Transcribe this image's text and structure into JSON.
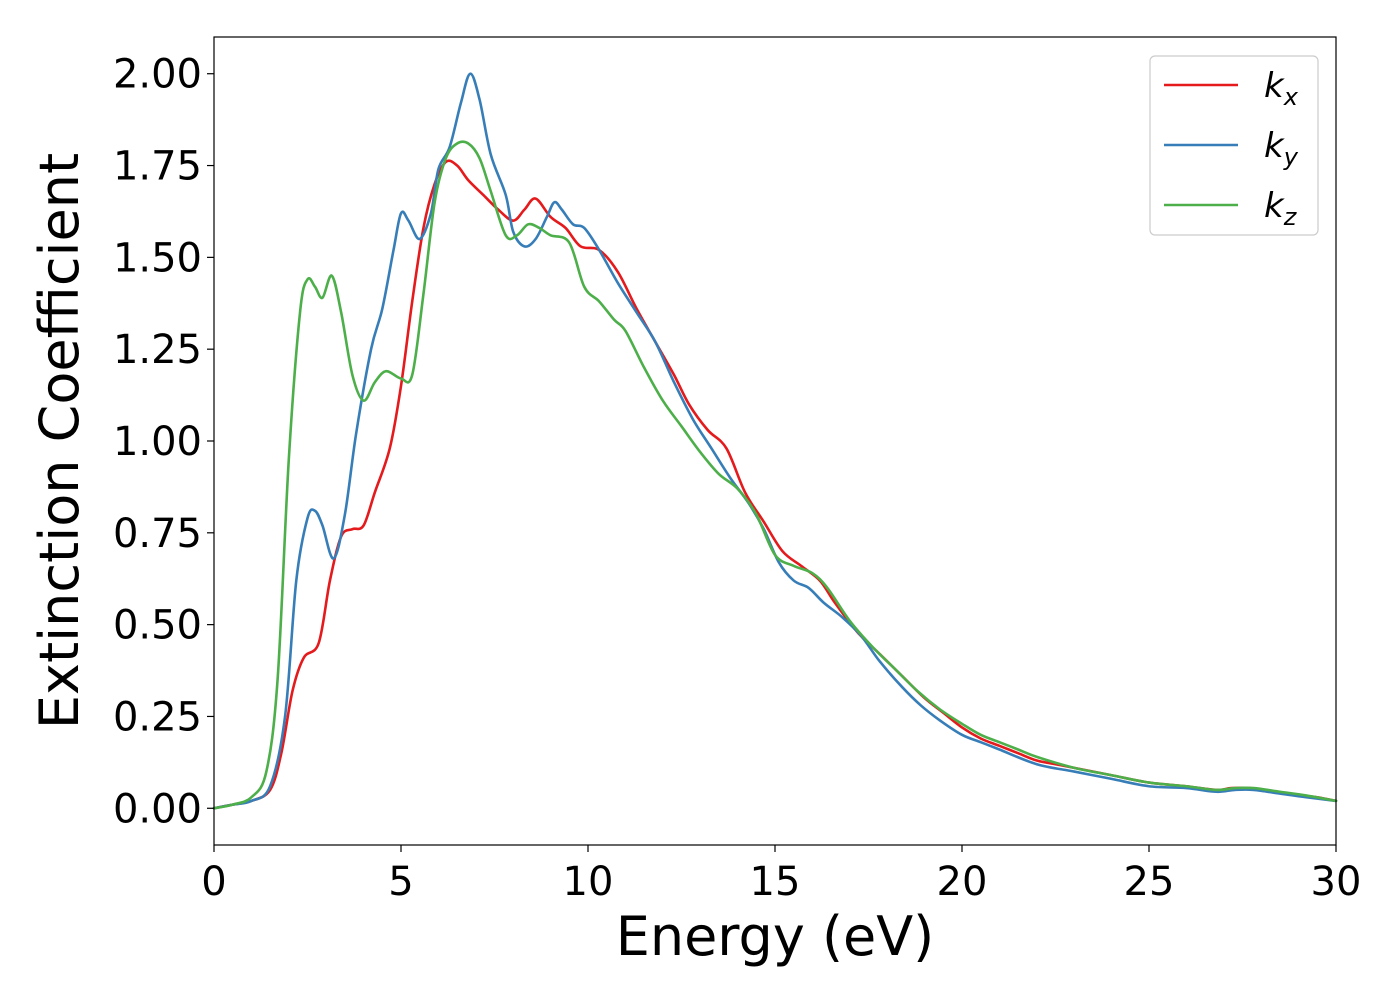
{
  "chart_data": {
    "type": "line",
    "xlabel": "Energy (eV)",
    "ylabel": "Extinction Coefficient",
    "xlim": [
      0,
      30
    ],
    "ylim": [
      -0.1,
      2.1
    ],
    "xticks": [
      "0",
      "5",
      "10",
      "15",
      "20",
      "25",
      "30"
    ],
    "yticks": [
      "0.00",
      "0.25",
      "0.50",
      "0.75",
      "1.00",
      "1.25",
      "1.50",
      "1.75",
      "2.00"
    ],
    "grid": false,
    "legend_position": "top-right",
    "series": [
      {
        "name": "k",
        "subscript": "x",
        "color": "#e41a1c",
        "points": [
          [
            0,
            0
          ],
          [
            0.5,
            0.01
          ],
          [
            1,
            0.02
          ],
          [
            1.5,
            0.05
          ],
          [
            1.8,
            0.15
          ],
          [
            2.1,
            0.32
          ],
          [
            2.4,
            0.41
          ],
          [
            2.8,
            0.45
          ],
          [
            3.1,
            0.62
          ],
          [
            3.4,
            0.74
          ],
          [
            3.7,
            0.76
          ],
          [
            4.0,
            0.77
          ],
          [
            4.3,
            0.86
          ],
          [
            4.7,
            0.98
          ],
          [
            5.0,
            1.15
          ],
          [
            5.3,
            1.38
          ],
          [
            5.6,
            1.58
          ],
          [
            5.9,
            1.7
          ],
          [
            6.2,
            1.76
          ],
          [
            6.5,
            1.75
          ],
          [
            6.8,
            1.71
          ],
          [
            7.2,
            1.67
          ],
          [
            7.6,
            1.63
          ],
          [
            8.0,
            1.6
          ],
          [
            8.3,
            1.63
          ],
          [
            8.6,
            1.66
          ],
          [
            9.0,
            1.61
          ],
          [
            9.4,
            1.58
          ],
          [
            9.8,
            1.53
          ],
          [
            10.3,
            1.52
          ],
          [
            10.8,
            1.46
          ],
          [
            11.3,
            1.36
          ],
          [
            11.8,
            1.27
          ],
          [
            12.3,
            1.18
          ],
          [
            12.7,
            1.1
          ],
          [
            13.2,
            1.03
          ],
          [
            13.7,
            0.98
          ],
          [
            14.2,
            0.86
          ],
          [
            14.7,
            0.78
          ],
          [
            15.2,
            0.7
          ],
          [
            15.7,
            0.66
          ],
          [
            16.2,
            0.62
          ],
          [
            16.6,
            0.56
          ],
          [
            17.2,
            0.48
          ],
          [
            17.8,
            0.42
          ],
          [
            18.4,
            0.36
          ],
          [
            19.0,
            0.3
          ],
          [
            19.5,
            0.26
          ],
          [
            20.0,
            0.22
          ],
          [
            20.5,
            0.19
          ],
          [
            21.0,
            0.17
          ],
          [
            21.5,
            0.15
          ],
          [
            22.0,
            0.13
          ],
          [
            22.5,
            0.12
          ],
          [
            23.0,
            0.11
          ],
          [
            24.0,
            0.09
          ],
          [
            25.0,
            0.07
          ],
          [
            26.0,
            0.06
          ],
          [
            26.8,
            0.05
          ],
          [
            27.2,
            0.055
          ],
          [
            27.7,
            0.055
          ],
          [
            28.3,
            0.045
          ],
          [
            29.0,
            0.035
          ],
          [
            29.5,
            0.03
          ],
          [
            30,
            0.02
          ]
        ]
      },
      {
        "name": "k",
        "subscript": "y",
        "color": "#377eb8",
        "points": [
          [
            0,
            0
          ],
          [
            0.5,
            0.01
          ],
          [
            1,
            0.02
          ],
          [
            1.5,
            0.06
          ],
          [
            1.9,
            0.25
          ],
          [
            2.2,
            0.62
          ],
          [
            2.5,
            0.79
          ],
          [
            2.7,
            0.81
          ],
          [
            2.9,
            0.77
          ],
          [
            3.2,
            0.68
          ],
          [
            3.5,
            0.8
          ],
          [
            3.8,
            1.02
          ],
          [
            4.2,
            1.25
          ],
          [
            4.5,
            1.36
          ],
          [
            4.8,
            1.52
          ],
          [
            5.0,
            1.62
          ],
          [
            5.2,
            1.6
          ],
          [
            5.5,
            1.55
          ],
          [
            5.8,
            1.62
          ],
          [
            6.0,
            1.74
          ],
          [
            6.3,
            1.8
          ],
          [
            6.6,
            1.92
          ],
          [
            6.85,
            2.0
          ],
          [
            7.1,
            1.93
          ],
          [
            7.4,
            1.78
          ],
          [
            7.8,
            1.67
          ],
          [
            8.0,
            1.57
          ],
          [
            8.3,
            1.53
          ],
          [
            8.6,
            1.55
          ],
          [
            8.9,
            1.61
          ],
          [
            9.1,
            1.65
          ],
          [
            9.3,
            1.63
          ],
          [
            9.6,
            1.59
          ],
          [
            9.9,
            1.58
          ],
          [
            10.3,
            1.52
          ],
          [
            10.8,
            1.43
          ],
          [
            11.3,
            1.35
          ],
          [
            11.8,
            1.27
          ],
          [
            12.3,
            1.16
          ],
          [
            12.8,
            1.06
          ],
          [
            13.3,
            0.98
          ],
          [
            13.8,
            0.9
          ],
          [
            14.3,
            0.83
          ],
          [
            14.7,
            0.76
          ],
          [
            15.1,
            0.67
          ],
          [
            15.5,
            0.62
          ],
          [
            15.9,
            0.6
          ],
          [
            16.3,
            0.56
          ],
          [
            16.8,
            0.52
          ],
          [
            17.3,
            0.47
          ],
          [
            17.8,
            0.4
          ],
          [
            18.4,
            0.33
          ],
          [
            18.9,
            0.28
          ],
          [
            19.4,
            0.24
          ],
          [
            20.0,
            0.2
          ],
          [
            20.5,
            0.18
          ],
          [
            21.0,
            0.16
          ],
          [
            22.0,
            0.12
          ],
          [
            23.0,
            0.1
          ],
          [
            24.0,
            0.08
          ],
          [
            25.0,
            0.06
          ],
          [
            26.0,
            0.055
          ],
          [
            26.8,
            0.045
          ],
          [
            27.3,
            0.05
          ],
          [
            27.8,
            0.05
          ],
          [
            28.5,
            0.04
          ],
          [
            29.2,
            0.03
          ],
          [
            30,
            0.02
          ]
        ]
      },
      {
        "name": "k",
        "subscript": "z",
        "color": "#4daf4a",
        "points": [
          [
            0,
            0
          ],
          [
            0.5,
            0.01
          ],
          [
            1,
            0.03
          ],
          [
            1.4,
            0.1
          ],
          [
            1.7,
            0.35
          ],
          [
            2.0,
            0.95
          ],
          [
            2.3,
            1.35
          ],
          [
            2.5,
            1.44
          ],
          [
            2.7,
            1.42
          ],
          [
            2.9,
            1.39
          ],
          [
            3.15,
            1.45
          ],
          [
            3.4,
            1.35
          ],
          [
            3.7,
            1.18
          ],
          [
            4.0,
            1.11
          ],
          [
            4.3,
            1.16
          ],
          [
            4.6,
            1.19
          ],
          [
            5.0,
            1.17
          ],
          [
            5.3,
            1.18
          ],
          [
            5.6,
            1.4
          ],
          [
            5.9,
            1.65
          ],
          [
            6.2,
            1.77
          ],
          [
            6.5,
            1.81
          ],
          [
            6.8,
            1.81
          ],
          [
            7.1,
            1.77
          ],
          [
            7.4,
            1.68
          ],
          [
            7.8,
            1.56
          ],
          [
            8.1,
            1.56
          ],
          [
            8.4,
            1.59
          ],
          [
            8.7,
            1.58
          ],
          [
            9.0,
            1.56
          ],
          [
            9.5,
            1.54
          ],
          [
            9.9,
            1.42
          ],
          [
            10.3,
            1.38
          ],
          [
            10.7,
            1.33
          ],
          [
            11.0,
            1.3
          ],
          [
            11.5,
            1.2
          ],
          [
            12.0,
            1.11
          ],
          [
            12.5,
            1.04
          ],
          [
            13.0,
            0.97
          ],
          [
            13.5,
            0.91
          ],
          [
            14.0,
            0.87
          ],
          [
            14.5,
            0.8
          ],
          [
            15.0,
            0.69
          ],
          [
            15.5,
            0.66
          ],
          [
            16.0,
            0.64
          ],
          [
            16.4,
            0.6
          ],
          [
            17.0,
            0.51
          ],
          [
            17.6,
            0.44
          ],
          [
            18.2,
            0.38
          ],
          [
            18.8,
            0.32
          ],
          [
            19.4,
            0.27
          ],
          [
            20.0,
            0.23
          ],
          [
            20.5,
            0.2
          ],
          [
            21.0,
            0.18
          ],
          [
            21.5,
            0.16
          ],
          [
            22.0,
            0.14
          ],
          [
            23.0,
            0.11
          ],
          [
            24.0,
            0.09
          ],
          [
            25.0,
            0.07
          ],
          [
            26.0,
            0.06
          ],
          [
            26.8,
            0.05
          ],
          [
            27.3,
            0.055
          ],
          [
            27.8,
            0.055
          ],
          [
            28.5,
            0.045
          ],
          [
            29.2,
            0.035
          ],
          [
            30,
            0.02
          ]
        ]
      }
    ]
  }
}
